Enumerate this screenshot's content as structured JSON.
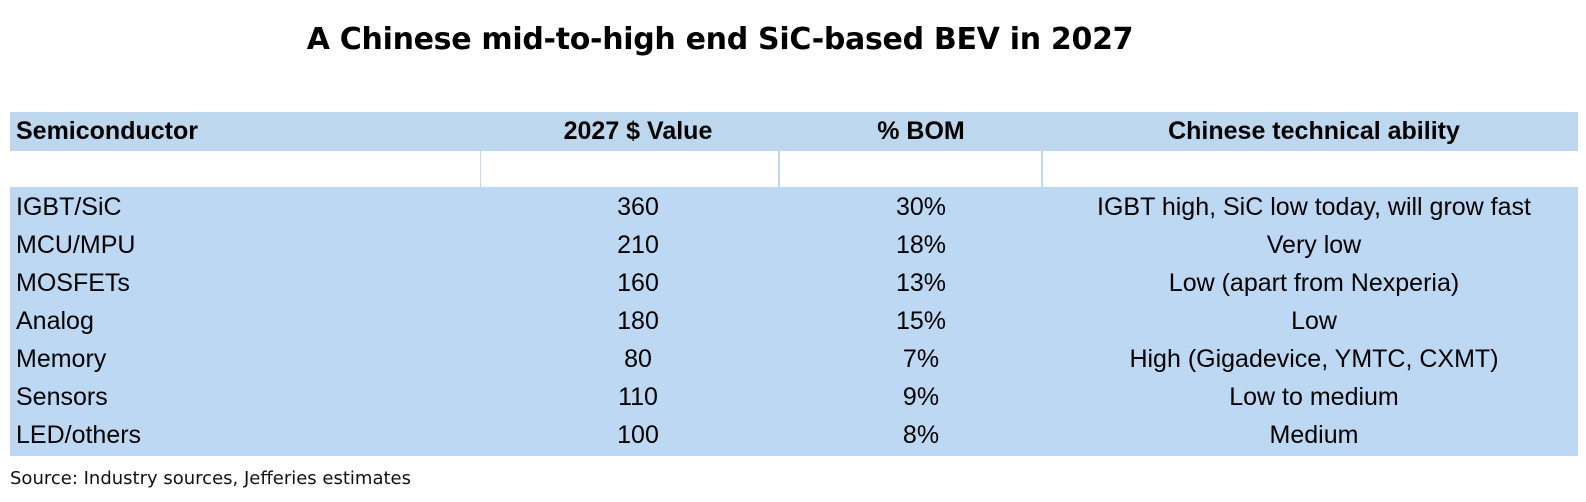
{
  "title": "A Chinese mid-to-high end SiC-based BEV in 2027",
  "table": {
    "headers": [
      "Semiconductor",
      "2027 $ Value",
      "% BOM",
      "Chinese technical ability"
    ],
    "rows": [
      [
        "IGBT/SiC",
        "360",
        "30%",
        "IGBT high, SiC low today, will grow fast"
      ],
      [
        "MCU/MPU",
        "210",
        "18%",
        "Very low"
      ],
      [
        "MOSFETs",
        "160",
        "13%",
        "Low (apart from Nexperia)"
      ],
      [
        "Analog",
        "180",
        "15%",
        "Low"
      ],
      [
        "Memory",
        "80",
        "7%",
        "High (Gigadevice, YMTC, CXMT)"
      ],
      [
        "Sensors",
        "110",
        "9%",
        "Low to medium"
      ],
      [
        "LED/others",
        "100",
        "8%",
        "Medium"
      ]
    ]
  },
  "source": "Source: Industry sources, Jefferies estimates",
  "colors": {
    "table_fill": "#bcd8f3",
    "blank_row_cells": "#ffffff"
  }
}
